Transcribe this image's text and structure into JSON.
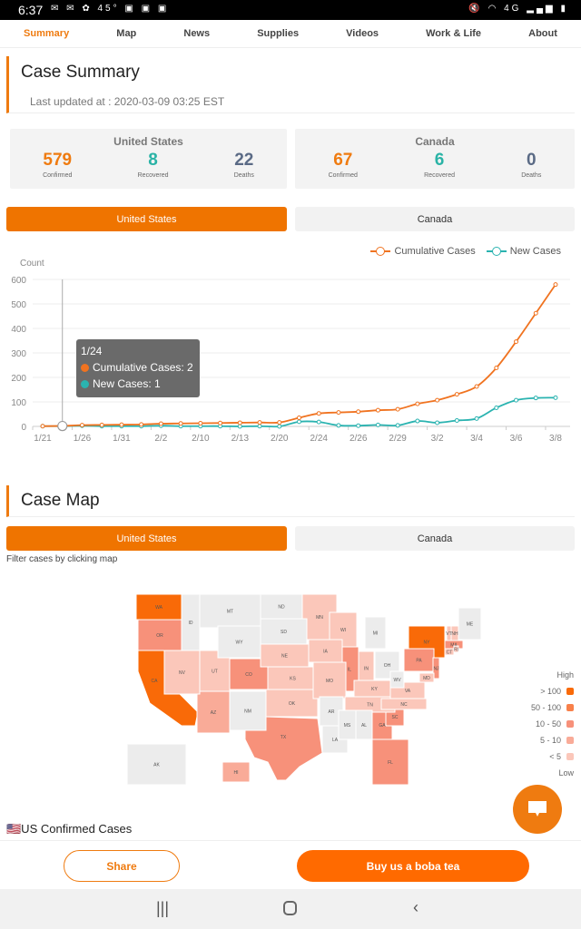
{
  "status_bar": {
    "time": "6:37",
    "temp": "45°",
    "network": "4G"
  },
  "nav": {
    "items": [
      "Summary",
      "Map",
      "News",
      "Supplies",
      "Videos",
      "Work & Life",
      "About"
    ],
    "active": 0
  },
  "summary": {
    "title": "Case Summary",
    "updated": "Last updated at : 2020-03-09 03:25 EST",
    "cards": [
      {
        "country": "United States",
        "confirmed": "579",
        "recovered": "8",
        "deaths": "22"
      },
      {
        "country": "Canada",
        "confirmed": "67",
        "recovered": "6",
        "deaths": "0"
      }
    ],
    "labels": {
      "confirmed": "Confirmed",
      "recovered": "Recovered",
      "deaths": "Deaths"
    },
    "toggle": [
      "United States",
      "Canada"
    ]
  },
  "colors": {
    "accent": "#ef7b10",
    "cumulative": "#f07320",
    "new": "#2ab3b0"
  },
  "chart_data": {
    "type": "line",
    "ylabel": "Count",
    "ylim": [
      0,
      600
    ],
    "yticks": [
      0,
      100,
      200,
      300,
      400,
      500,
      600
    ],
    "xtick_labels": [
      "1/21",
      "1/26",
      "1/31",
      "2/2",
      "2/10",
      "2/13",
      "2/20",
      "2/24",
      "2/26",
      "2/29",
      "3/2",
      "3/4",
      "3/6",
      "3/8"
    ],
    "legend": [
      "Cumulative Cases",
      "New Cases"
    ],
    "series": [
      {
        "name": "Cumulative Cases",
        "values": [
          1,
          2,
          5,
          6,
          7,
          8,
          11,
          12,
          13,
          14,
          15,
          16,
          16,
          35,
          53,
          57,
          60,
          66,
          70,
          92,
          107,
          131,
          163,
          239,
          346,
          462,
          579
        ]
      },
      {
        "name": "New Cases",
        "values": [
          1,
          1,
          3,
          1,
          1,
          1,
          3,
          1,
          1,
          1,
          0,
          1,
          0,
          19,
          18,
          4,
          3,
          6,
          4,
          22,
          15,
          24,
          32,
          76,
          107,
          116,
          117
        ]
      }
    ],
    "tooltip": {
      "date": "1/24",
      "cumulative": "Cumulative Cases: 2",
      "new": "New Cases: 1",
      "index": 1
    }
  },
  "casemap": {
    "title": "Case Map",
    "toggle": [
      "United States",
      "Canada"
    ],
    "filter_hint": "Filter cases by clicking map",
    "legend": {
      "high": "High",
      "low": "Low",
      "bins": [
        "> 100",
        "50 - 100",
        "10 - 50",
        "5 - 10",
        "< 5"
      ],
      "bin_colors": [
        "#f96a08",
        "#f8804a",
        "#f7917a",
        "#f9ab98",
        "#fbc7ba"
      ],
      "none_color": "#ececec"
    },
    "states": {
      "WA": 0,
      "CA": 0,
      "NY": 0,
      "OR": 2,
      "CO": 2,
      "TX": 2,
      "GA": 2,
      "FL": 2,
      "IL": 2,
      "SC": 2,
      "PA": 2,
      "NJ": 2,
      "MA": 2,
      "AZ": 3,
      "HI": 3,
      "NV": 4,
      "UT": 4,
      "NE": 4,
      "KS": 4,
      "OK": 4,
      "MN": 4,
      "WI": 4,
      "IA": 4,
      "MO": 4,
      "IN": 4,
      "KY": 4,
      "TN": 4,
      "NC": 4,
      "VA": 4,
      "MD": 4,
      "NH": 4,
      "VT": 4,
      "CT": 4,
      "RI": 4,
      "ID": -1,
      "MT": -1,
      "WY": -1,
      "NM": -1,
      "ND": -1,
      "SD": -1,
      "AR": -1,
      "LA": -1,
      "MS": -1,
      "AL": -1,
      "MI": -1,
      "OH": -1,
      "WV": -1,
      "ME": -1,
      "AK": -1
    }
  },
  "confirmed_heading": "🇺🇸US Confirmed Cases",
  "footer": {
    "share": "Share",
    "boba": "Buy us a boba tea"
  }
}
